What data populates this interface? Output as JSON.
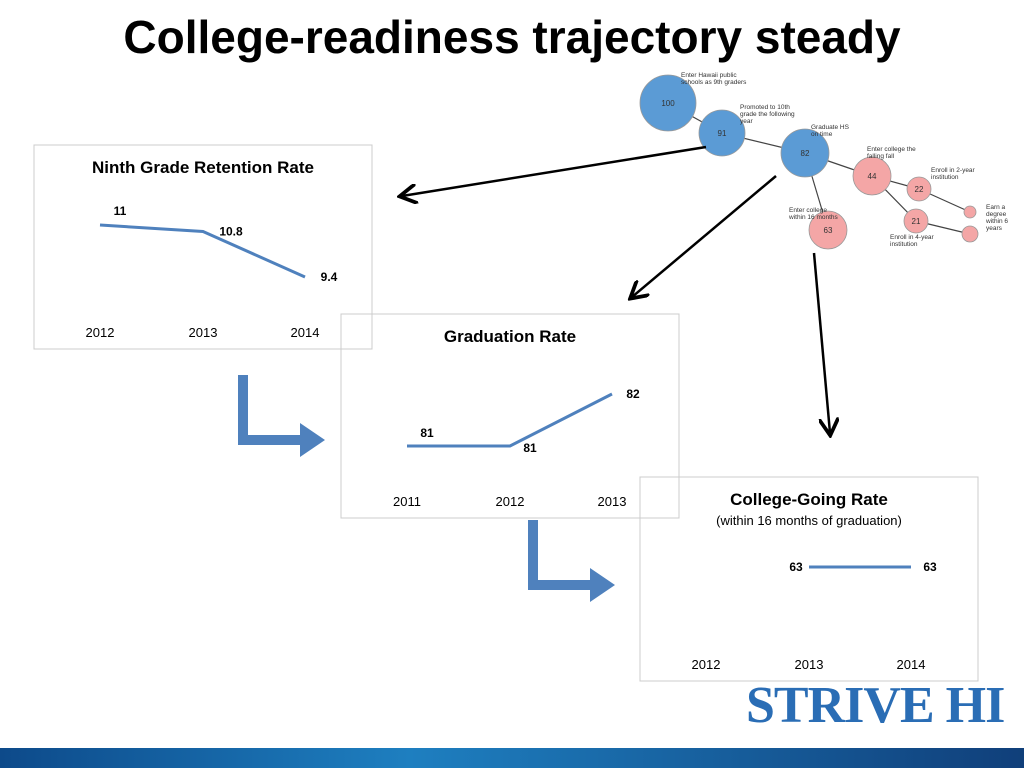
{
  "title": "College-readiness trajectory steady",
  "chart_data": [
    {
      "type": "line",
      "title": "Ninth Grade Retention Rate",
      "categories": [
        "2012",
        "2013",
        "2014"
      ],
      "values": [
        11,
        10.8,
        9.4
      ],
      "color": "#4f81bd"
    },
    {
      "type": "line",
      "title": "Graduation Rate",
      "categories": [
        "2011",
        "2012",
        "2013"
      ],
      "values": [
        81,
        81,
        82
      ],
      "color": "#4f81bd"
    },
    {
      "type": "line",
      "title": "College-Going Rate",
      "subtitle": "(within 16 months of graduation)",
      "categories": [
        "2012",
        "2013",
        "2014"
      ],
      "values": [
        null,
        63,
        63
      ],
      "color": "#4f81bd"
    }
  ],
  "diagram": {
    "nodes": [
      {
        "value": 100,
        "label": "Enter Hawaii public schools as 9th graders"
      },
      {
        "value": 91,
        "label": "Promoted to 10th grade the following year"
      },
      {
        "value": 82,
        "label": "Graduate HS on time"
      },
      {
        "value": 44,
        "label": "Enter college the falling fall"
      },
      {
        "value": 63,
        "label": "Enter college within 16 months"
      },
      {
        "value": 22,
        "label": "Enroll in 2-year institution"
      },
      {
        "value": 21,
        "label": "Enroll in 4-year institution"
      }
    ],
    "outcome_label": "Earn a degree within 6 years"
  },
  "logo": "STRIVE HI"
}
